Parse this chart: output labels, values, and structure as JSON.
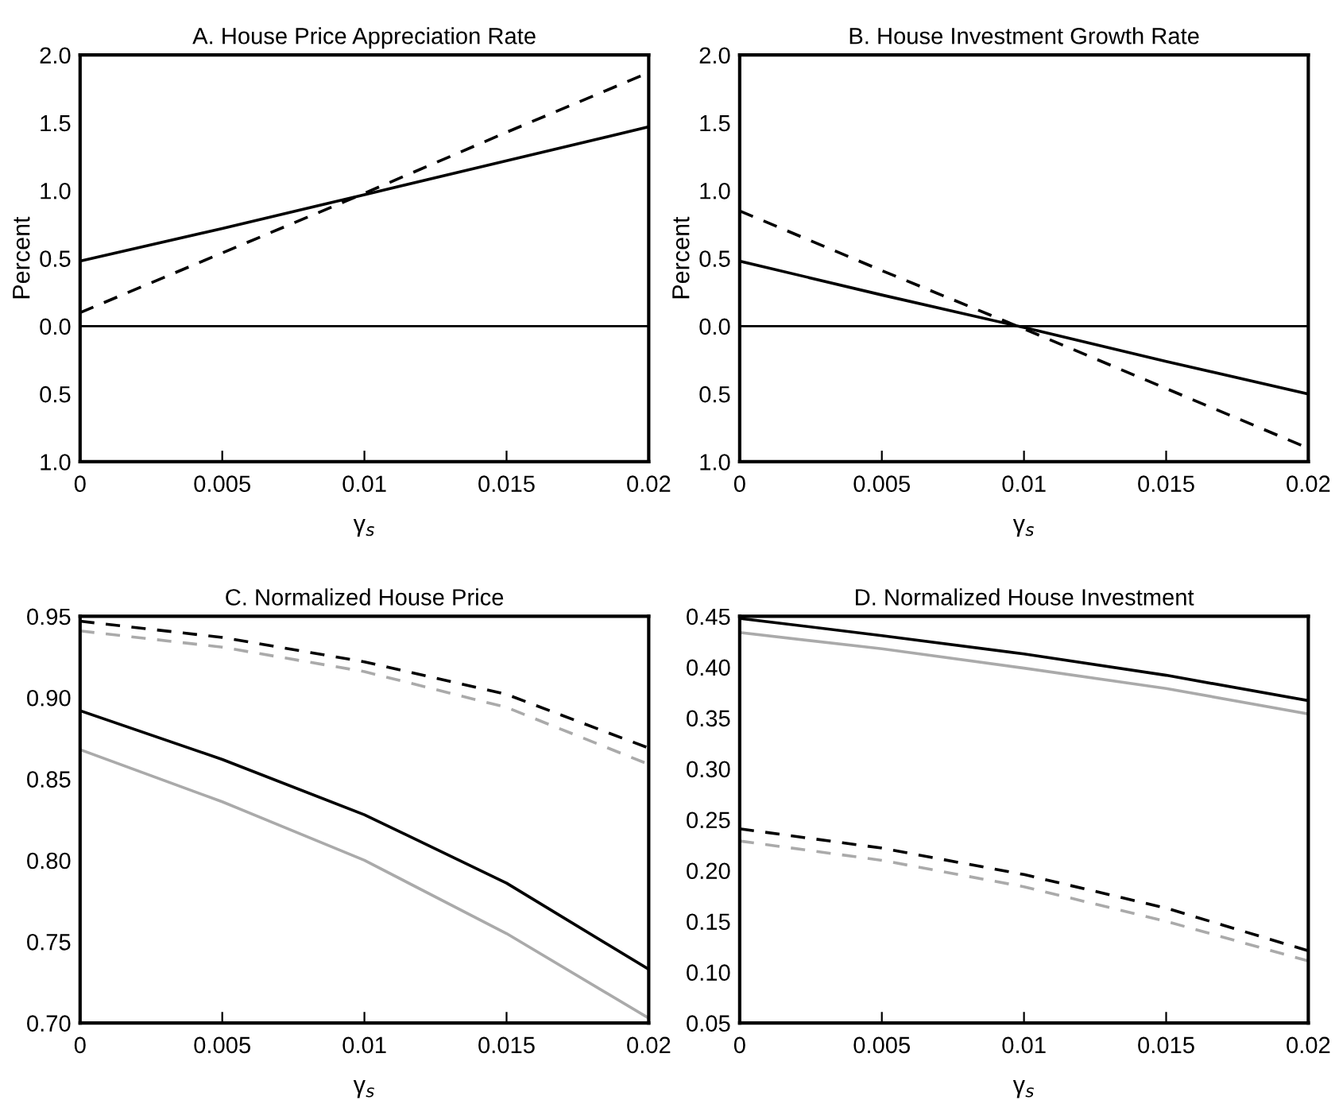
{
  "chart_data": [
    {
      "type": "line",
      "title": "A. House Price Appreciation Rate",
      "xlabel": "γ$_{s}$",
      "ylabel": "Percent",
      "x": [
        0,
        0.005,
        0.01,
        0.015,
        0.02
      ],
      "xlim": [
        0,
        0.02
      ],
      "xticks": [
        0,
        0.005,
        0.01,
        0.015,
        0.02
      ],
      "ylim": [
        -1.0,
        2.0
      ],
      "yticks": [
        {
          "value": -1.0,
          "label": "1.0"
        },
        {
          "value": -0.5,
          "label": "0.5"
        },
        {
          "value": 0.0,
          "label": "0.0"
        },
        {
          "value": 0.5,
          "label": "0.5"
        },
        {
          "value": 1.0,
          "label": "1.0"
        },
        {
          "value": 1.5,
          "label": "1.5"
        },
        {
          "value": 2.0,
          "label": "2.0"
        }
      ],
      "grid": false,
      "ref_lines": [
        {
          "axis": "y",
          "value": 0,
          "color": "#000000",
          "line_style": "solid"
        }
      ],
      "series": [
        {
          "color": "#000000",
          "line_style": "solid",
          "values": [
            0.48,
            0.72,
            0.97,
            1.22,
            1.47
          ]
        },
        {
          "color": "#000000",
          "line_style": "dashed",
          "values": [
            0.1,
            0.54,
            0.98,
            1.43,
            1.87
          ]
        }
      ]
    },
    {
      "type": "line",
      "title": "B. House Investment Growth Rate",
      "xlabel": "γ$_{s}$",
      "ylabel": "Percent",
      "x": [
        0,
        0.005,
        0.01,
        0.015,
        0.02
      ],
      "xlim": [
        0,
        0.02
      ],
      "xticks": [
        0,
        0.005,
        0.01,
        0.015,
        0.02
      ],
      "ylim": [
        -1.0,
        2.0
      ],
      "yticks": [
        {
          "value": -1.0,
          "label": "1.0"
        },
        {
          "value": -0.5,
          "label": "0.5"
        },
        {
          "value": 0.0,
          "label": "0.0"
        },
        {
          "value": 0.5,
          "label": "0.5"
        },
        {
          "value": 1.0,
          "label": "1.0"
        },
        {
          "value": 1.5,
          "label": "1.5"
        },
        {
          "value": 2.0,
          "label": "2.0"
        }
      ],
      "grid": false,
      "ref_lines": [
        {
          "axis": "y",
          "value": 0,
          "color": "#000000",
          "line_style": "solid"
        }
      ],
      "series": [
        {
          "color": "#000000",
          "line_style": "solid",
          "values": [
            0.48,
            0.23,
            -0.01,
            -0.26,
            -0.5
          ]
        },
        {
          "color": "#000000",
          "line_style": "dashed",
          "values": [
            0.85,
            0.41,
            -0.02,
            -0.46,
            -0.9
          ]
        }
      ]
    },
    {
      "type": "line",
      "title": "C. Normalized House Price",
      "xlabel": "γ$_{s}$",
      "x": [
        0,
        0.005,
        0.01,
        0.015,
        0.02
      ],
      "xlim": [
        0,
        0.02
      ],
      "xticks": [
        0,
        0.005,
        0.01,
        0.015,
        0.02
      ],
      "ylim": [
        0.7,
        0.95
      ],
      "yticks": [
        {
          "value": 0.7,
          "label": "0.70"
        },
        {
          "value": 0.75,
          "label": "0.75"
        },
        {
          "value": 0.8,
          "label": "0.80"
        },
        {
          "value": 0.85,
          "label": "0.85"
        },
        {
          "value": 0.9,
          "label": "0.90"
        },
        {
          "value": 0.95,
          "label": "0.95"
        }
      ],
      "grid": false,
      "series": [
        {
          "color": "#000000",
          "line_style": "dashed",
          "values": [
            0.947,
            0.937,
            0.922,
            0.902,
            0.869
          ]
        },
        {
          "color": "#aaaaaa",
          "line_style": "dashed",
          "values": [
            0.941,
            0.931,
            0.916,
            0.894,
            0.859
          ]
        },
        {
          "color": "#000000",
          "line_style": "solid",
          "values": [
            0.892,
            0.862,
            0.828,
            0.786,
            0.733
          ]
        },
        {
          "color": "#aaaaaa",
          "line_style": "solid",
          "values": [
            0.868,
            0.836,
            0.8,
            0.755,
            0.703
          ]
        }
      ]
    },
    {
      "type": "line",
      "title": "D. Normalized House Investment",
      "xlabel": "γ$_{s}$",
      "x": [
        0,
        0.005,
        0.01,
        0.015,
        0.02
      ],
      "xlim": [
        0,
        0.02
      ],
      "xticks": [
        0,
        0.005,
        0.01,
        0.015,
        0.02
      ],
      "ylim": [
        0.05,
        0.45
      ],
      "yticks": [
        {
          "value": 0.05,
          "label": "0.05"
        },
        {
          "value": 0.1,
          "label": "0.10"
        },
        {
          "value": 0.15,
          "label": "0.15"
        },
        {
          "value": 0.2,
          "label": "0.20"
        },
        {
          "value": 0.25,
          "label": "0.25"
        },
        {
          "value": 0.3,
          "label": "0.30"
        },
        {
          "value": 0.35,
          "label": "0.35"
        },
        {
          "value": 0.4,
          "label": "0.40"
        },
        {
          "value": 0.45,
          "label": "0.45"
        }
      ],
      "grid": false,
      "series": [
        {
          "color": "#000000",
          "line_style": "solid",
          "values": [
            0.448,
            0.431,
            0.413,
            0.392,
            0.367
          ]
        },
        {
          "color": "#aaaaaa",
          "line_style": "solid",
          "values": [
            0.434,
            0.418,
            0.399,
            0.379,
            0.354
          ]
        },
        {
          "color": "#000000",
          "line_style": "dashed",
          "values": [
            0.241,
            0.222,
            0.196,
            0.163,
            0.121
          ]
        },
        {
          "color": "#aaaaaa",
          "line_style": "dashed",
          "values": [
            0.229,
            0.21,
            0.184,
            0.15,
            0.111
          ]
        }
      ]
    }
  ]
}
